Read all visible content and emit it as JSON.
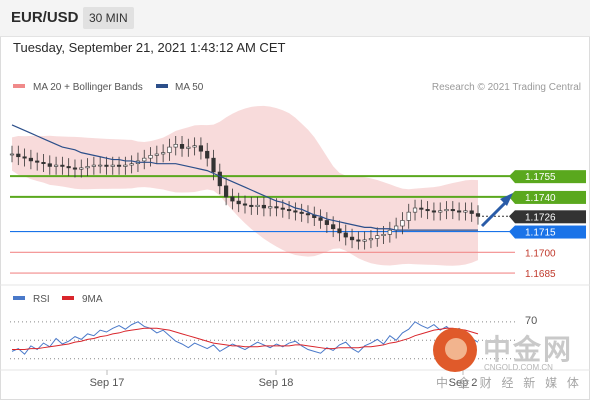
{
  "header": {
    "pair": "EUR/USD",
    "timeframe": "30 MIN"
  },
  "timestamp": "Tuesday, September 21, 2021 1:43:12 AM CET",
  "legend": {
    "bb": "MA 20 + Bollinger Bands",
    "ma50": "MA 50",
    "credit": "Research © 2021 Trading Central"
  },
  "rsi_legend": {
    "rsi": "RSI",
    "ma9": "9MA"
  },
  "rsi_level": "70",
  "colors": {
    "support_green": "#5aa81e",
    "resistance_blue": "#1a73e8",
    "bb_fill": "#f7d5d5",
    "ma50": "#2c4f8a",
    "rsi": "#4a79c9",
    "ma9": "#d9262c",
    "arrow": "#2a5ca8",
    "red_level": "#f28b8b"
  },
  "watermark": {
    "cn": "中金网",
    "url": "CNGOLD.COM.CN",
    "sub": "中 金 财 经 新 媒 体"
  },
  "chart_data": [
    {
      "type": "candlestick",
      "title": "EUR/USD",
      "x_ticks": [
        "Sep 17",
        "Sep 18",
        "Sep 2"
      ],
      "levels": [
        {
          "label": "1.1755",
          "value": 1.1755,
          "kind": "resistance"
        },
        {
          "label": "1.1740",
          "value": 1.174,
          "kind": "resistance"
        },
        {
          "label": "1.1726",
          "value": 1.1726,
          "kind": "last"
        },
        {
          "label": "1.1715",
          "value": 1.1715,
          "kind": "pivot"
        },
        {
          "label": "1.1700",
          "value": 1.17,
          "kind": "support"
        },
        {
          "label": "1.1685",
          "value": 1.1685,
          "kind": "support"
        }
      ],
      "closes": [
        1.1771,
        1.1769,
        1.1768,
        1.1766,
        1.1765,
        1.1764,
        1.1762,
        1.1763,
        1.1762,
        1.1761,
        1.176,
        1.1761,
        1.1762,
        1.1763,
        1.1763,
        1.1762,
        1.1763,
        1.1762,
        1.1763,
        1.1764,
        1.1766,
        1.1768,
        1.177,
        1.1771,
        1.1772,
        1.1776,
        1.1778,
        1.1775,
        1.1776,
        1.1777,
        1.1773,
        1.1768,
        1.1758,
        1.1748,
        1.174,
        1.1737,
        1.1735,
        1.1734,
        1.1733,
        1.1734,
        1.1732,
        1.1733,
        1.1732,
        1.1731,
        1.173,
        1.1729,
        1.1728,
        1.1727,
        1.1725,
        1.1723,
        1.172,
        1.1717,
        1.1714,
        1.1711,
        1.1709,
        1.1708,
        1.1709,
        1.171,
        1.1712,
        1.1713,
        1.1716,
        1.1719,
        1.1723,
        1.1729,
        1.1732,
        1.1731,
        1.173,
        1.1729,
        1.173,
        1.1731,
        1.173,
        1.1729,
        1.173,
        1.1728,
        1.1726
      ],
      "ma50": [
        1.1792,
        1.179,
        1.1788,
        1.1786,
        1.1784,
        1.1782,
        1.178,
        1.1778,
        1.1776,
        1.1775,
        1.1774,
        1.1772,
        1.1771,
        1.177,
        1.1769,
        1.1768,
        1.1767,
        1.1767,
        1.1766,
        1.1766,
        1.1765,
        1.1765,
        1.1765,
        1.1764,
        1.1764,
        1.1764,
        1.1764,
        1.1763,
        1.1762,
        1.1761,
        1.176,
        1.1759,
        1.1757,
        1.1755,
        1.1753,
        1.1751,
        1.1749,
        1.1747,
        1.1745,
        1.1743,
        1.1741,
        1.1739,
        1.1737,
        1.1736,
        1.1734,
        1.1732,
        1.1731,
        1.1729,
        1.1727,
        1.1726,
        1.1724,
        1.1723,
        1.1722,
        1.1721,
        1.172,
        1.1719,
        1.1718,
        1.1718,
        1.1717,
        1.1717,
        1.1717,
        1.1716,
        1.1716,
        1.1716,
        1.1716,
        1.1716,
        1.1716,
        1.1716,
        1.1716,
        1.1716,
        1.1716,
        1.1716,
        1.1716,
        1.1716,
        1.1716
      ],
      "ylim": [
        1.168,
        1.181
      ]
    },
    {
      "type": "line",
      "title": "RSI",
      "series": [
        {
          "name": "RSI",
          "values": [
            38,
            41,
            35,
            44,
            40,
            47,
            43,
            52,
            46,
            49,
            54,
            51,
            57,
            55,
            61,
            59,
            63,
            66,
            62,
            67,
            70,
            65,
            63,
            58,
            61,
            55,
            49,
            46,
            42,
            47,
            44,
            41,
            45,
            38,
            42,
            46,
            43,
            40,
            44,
            48,
            45,
            42,
            46,
            43,
            47,
            49,
            44,
            40,
            38,
            36,
            42,
            39,
            45,
            48,
            41,
            37,
            44,
            47,
            51,
            46,
            55,
            50,
            58,
            62,
            70,
            66,
            63,
            67,
            61,
            65,
            59,
            63,
            57,
            52,
            48
          ]
        },
        {
          "name": "9MA",
          "values": [
            40,
            40,
            40,
            41,
            41,
            42,
            43,
            44,
            45,
            46,
            48,
            49,
            51,
            52,
            54,
            55,
            57,
            58,
            60,
            61,
            62,
            63,
            63,
            63,
            62,
            61,
            59,
            57,
            55,
            53,
            51,
            49,
            47,
            46,
            45,
            44,
            44,
            43,
            43,
            43,
            44,
            44,
            44,
            44,
            44,
            45,
            45,
            44,
            43,
            42,
            41,
            41,
            42,
            42,
            42,
            42,
            43,
            43,
            44,
            45,
            47,
            48,
            50,
            52,
            55,
            57,
            59,
            61,
            62,
            63,
            63,
            62,
            61,
            59,
            57
          ]
        }
      ],
      "y_ticks": [
        "70"
      ],
      "ylim": [
        20,
        85
      ]
    }
  ]
}
